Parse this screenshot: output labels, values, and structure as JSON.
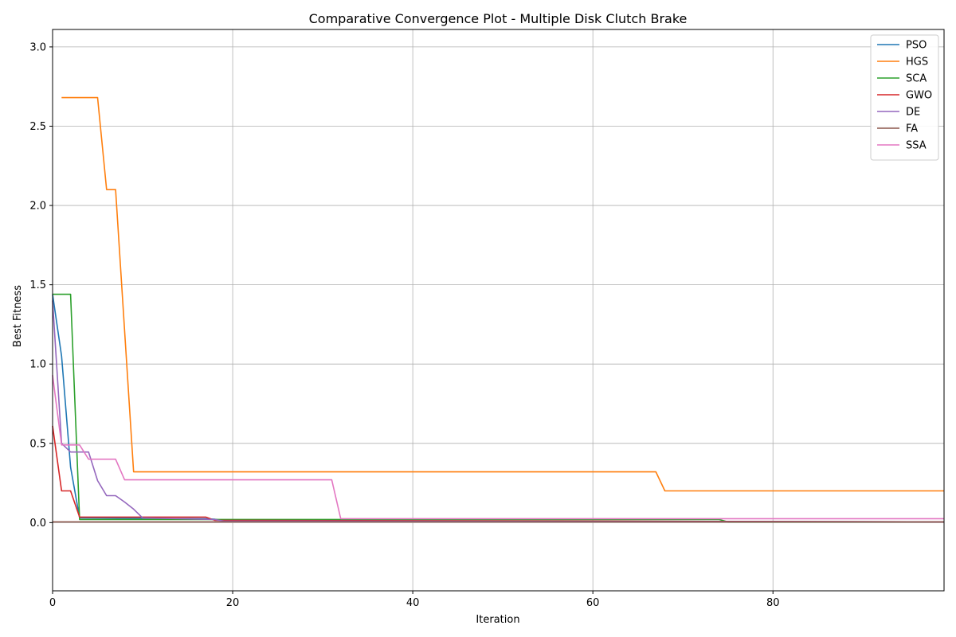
{
  "chart_data": {
    "type": "line",
    "title": "Comparative Convergence Plot - Multiple Disk Clutch Brake",
    "xlabel": "Iteration",
    "ylabel": "Best Fitness",
    "xlim": [
      0,
      99
    ],
    "ylim": [
      -0.43,
      3.11
    ],
    "xticks": [
      0,
      20,
      40,
      60,
      80
    ],
    "yticks": [
      0.0,
      0.5,
      1.0,
      1.5,
      2.0,
      2.5,
      3.0
    ],
    "ytick_labels": [
      "0.0",
      "0.5",
      "1.0",
      "1.5",
      "2.0",
      "2.5",
      "3.0"
    ],
    "grid": true,
    "legend_position": "upper-right",
    "series": [
      {
        "name": "PSO",
        "color": "#1f77b4",
        "x": [
          0,
          1,
          2,
          3,
          17,
          18,
          19,
          99
        ],
        "y": [
          1.44,
          1.05,
          0.35,
          0.03,
          0.025,
          0.022,
          0.01,
          0.005
        ]
      },
      {
        "name": "HGS",
        "color": "#ff7f0e",
        "x": [
          1,
          2,
          3,
          4,
          5,
          6,
          7,
          9,
          67,
          68,
          99
        ],
        "y": [
          2.68,
          2.68,
          2.68,
          2.68,
          2.68,
          2.1,
          2.1,
          0.32,
          0.32,
          0.2,
          0.2
        ]
      },
      {
        "name": "SCA",
        "color": "#2ca02c",
        "x": [
          0,
          1,
          2,
          3,
          74,
          75,
          99
        ],
        "y": [
          1.44,
          1.44,
          1.44,
          0.02,
          0.02,
          0.005,
          0.005
        ]
      },
      {
        "name": "GWO",
        "color": "#d62728",
        "x": [
          0,
          1,
          2,
          3,
          17,
          18,
          99
        ],
        "y": [
          0.61,
          0.2,
          0.2,
          0.035,
          0.035,
          0.015,
          0.005
        ]
      },
      {
        "name": "DE",
        "color": "#9467bd",
        "x": [
          0,
          1,
          2,
          3,
          4,
          5,
          6,
          7,
          8,
          9,
          10,
          18,
          19,
          99
        ],
        "y": [
          1.4,
          0.5,
          0.445,
          0.445,
          0.445,
          0.265,
          0.17,
          0.17,
          0.13,
          0.085,
          0.03,
          0.02,
          0.01,
          0.005
        ]
      },
      {
        "name": "FA",
        "color": "#8c564b",
        "x": [
          0,
          99
        ],
        "y": [
          0.005,
          0.005
        ]
      },
      {
        "name": "SSA",
        "color": "#e377c2",
        "x": [
          0,
          1,
          2,
          3,
          4,
          5,
          7,
          8,
          31,
          32,
          99
        ],
        "y": [
          0.93,
          0.49,
          0.49,
          0.49,
          0.4,
          0.4,
          0.4,
          0.27,
          0.27,
          0.025,
          0.025
        ]
      }
    ]
  }
}
